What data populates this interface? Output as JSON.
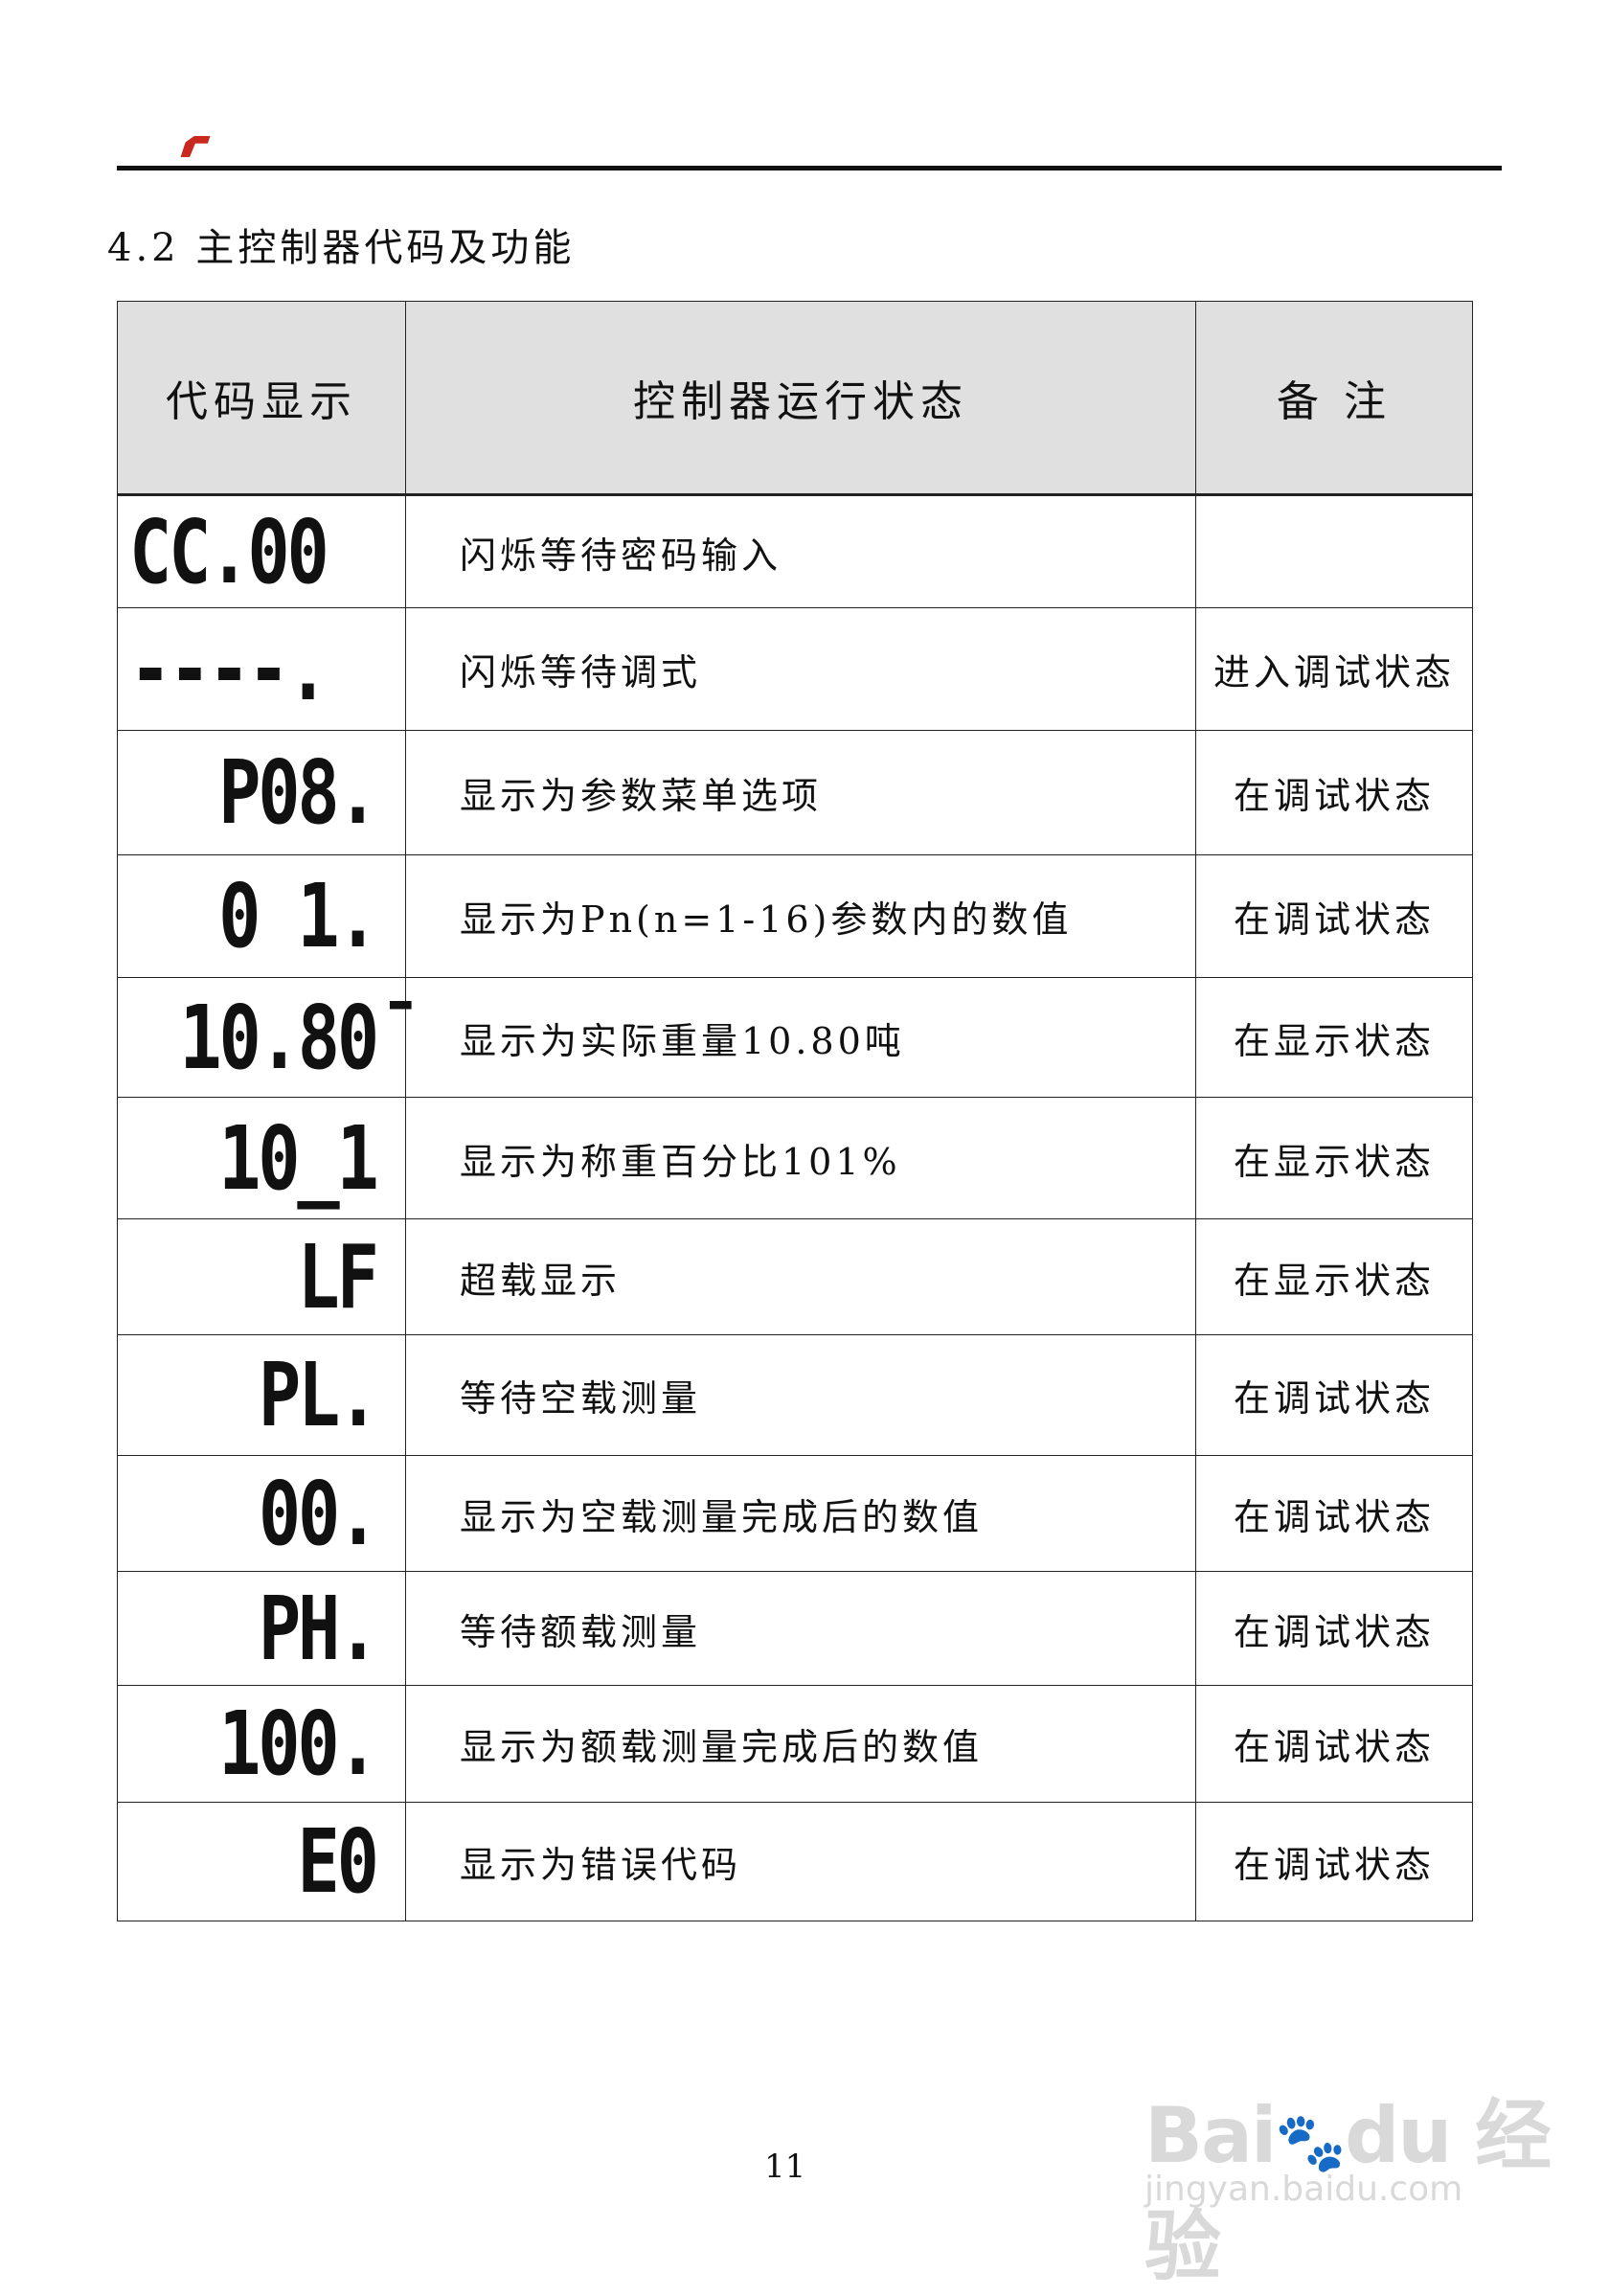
{
  "header": {
    "logo": "logo-mark",
    "accent_color": "#c8281e"
  },
  "section_title": "4.2  主控制器代码及功能",
  "table": {
    "headers": [
      "代码显示",
      "控制器运行状态",
      "备 注"
    ],
    "rows": [
      {
        "code": "CC.00",
        "desc": "闪烁等待密码输入",
        "note": ""
      },
      {
        "code": "----.",
        "desc": "闪烁等待调式",
        "note": "进入调试状态"
      },
      {
        "code": "P08.",
        "desc": "显示为参数菜单选项",
        "note": "在调试状态"
      },
      {
        "code": "0 1.",
        "desc": "显示为Pn(n=1-16)参数内的数值",
        "note": "在调试状态"
      },
      {
        "code": "10.80̄",
        "desc": "显示为实际重量10.80吨",
        "note": "在显示状态"
      },
      {
        "code": "10_1",
        "desc": "显示为称重百分比101%",
        "note": "在显示状态"
      },
      {
        "code": "LF",
        "desc": "超载显示",
        "note": "在显示状态"
      },
      {
        "code": "PL.",
        "desc": "等待空载测量",
        "note": "在调试状态"
      },
      {
        "code": "00.",
        "desc": "显示为空载测量完成后的数值",
        "note": "在调试状态"
      },
      {
        "code": "PH.",
        "desc": "等待额载测量",
        "note": "在调试状态"
      },
      {
        "code": "100.",
        "desc": "显示为额载测量完成后的数值",
        "note": "在调试状态"
      },
      {
        "code": "E0",
        "desc": "显示为错误代码",
        "note": "在调试状态"
      }
    ]
  },
  "page_number": "11",
  "watermark": {
    "brand": "Bai du 经验",
    "url": "jingyan.baidu.com"
  }
}
